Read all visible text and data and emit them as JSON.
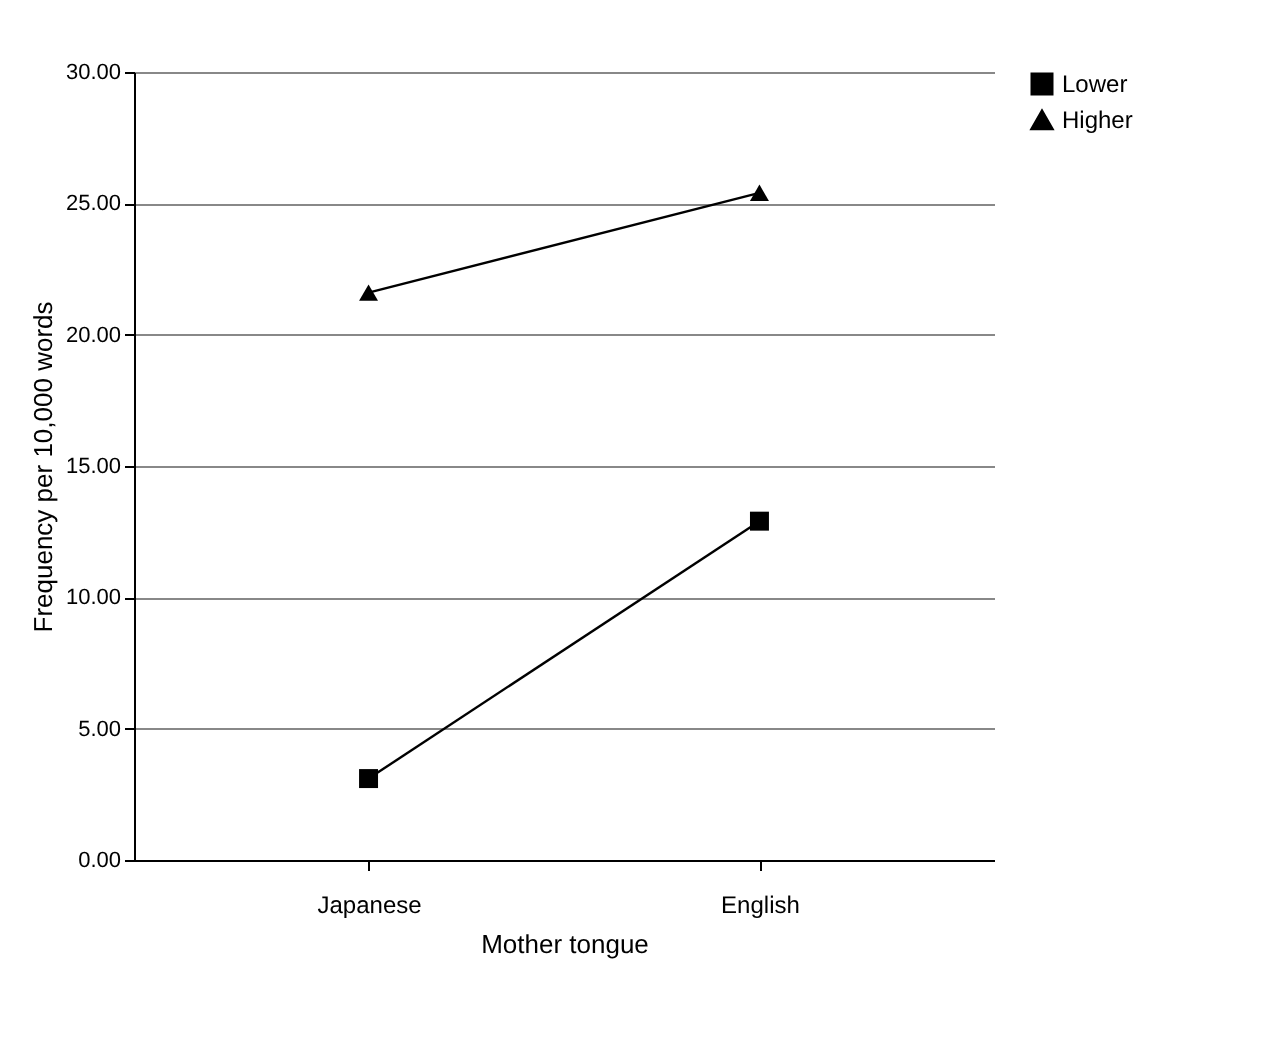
{
  "chart_data": {
    "type": "line",
    "xlabel": "Mother tongue",
    "ylabel": "Frequency per 10,000 words",
    "categories": [
      "Japanese",
      "English"
    ],
    "series": [
      {
        "name": "Lower",
        "color": "#000000",
        "marker": "square",
        "values": [
          3.1,
          12.9
        ]
      },
      {
        "name": "Higher",
        "color": "#000000",
        "marker": "triangle",
        "values": [
          21.6,
          25.4
        ]
      }
    ],
    "ylim": [
      0,
      30
    ],
    "yticks": [
      {
        "value": 0,
        "label": "0.00"
      },
      {
        "value": 5,
        "label": "5.00"
      },
      {
        "value": 10,
        "label": "10.00"
      },
      {
        "value": 15,
        "label": "15.00"
      },
      {
        "value": 20,
        "label": "20.00"
      },
      {
        "value": 25,
        "label": "25.00"
      },
      {
        "value": 30,
        "label": "30.00"
      }
    ],
    "grid": "y",
    "legend": "right",
    "line_style": "solid"
  }
}
